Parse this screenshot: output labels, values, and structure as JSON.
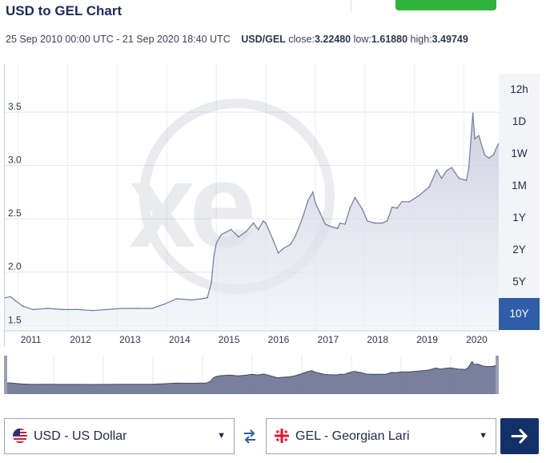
{
  "page_title": "USD to GEL Chart",
  "summary": {
    "date_range": "25 Sep 2010 00:00 UTC - 21 Sep 2020 18:40 UTC",
    "pair": "USD/GEL",
    "close_label": "close:",
    "close": "3.22480",
    "low_label": "low:",
    "low": "1.61880",
    "high_label": "high:",
    "high": "3.49749"
  },
  "range_buttons": [
    "12h",
    "1D",
    "1W",
    "1M",
    "1Y",
    "2Y",
    "5Y",
    "10Y"
  ],
  "active_range": "10Y",
  "chart_data": {
    "type": "area",
    "title": "USD to GEL Chart",
    "x_tick_labels": [
      "2011",
      "2012",
      "2013",
      "2014",
      "2015",
      "2016",
      "2017",
      "2018",
      "2019",
      "2020"
    ],
    "y_tick_labels": [
      "1.5",
      "2.0",
      "2.5",
      "3.0",
      "3.5"
    ],
    "ylim": [
      1.45,
      3.95
    ],
    "xlim": [
      2010.73,
      2020.72
    ],
    "grid": true,
    "series": [
      {
        "name": "USD/GEL",
        "x": [
          2010.73,
          2010.85,
          2010.95,
          2011.1,
          2011.3,
          2011.6,
          2011.9,
          2012.2,
          2012.5,
          2012.8,
          2013.1,
          2013.4,
          2013.7,
          2013.95,
          2014.2,
          2014.5,
          2014.7,
          2014.82,
          2014.9,
          2014.95,
          2015.0,
          2015.1,
          2015.3,
          2015.45,
          2015.6,
          2015.75,
          2015.85,
          2015.95,
          2016.0,
          2016.15,
          2016.25,
          2016.35,
          2016.5,
          2016.6,
          2016.75,
          2016.85,
          2016.95,
          2017.0,
          2017.1,
          2017.2,
          2017.3,
          2017.45,
          2017.5,
          2017.6,
          2017.7,
          2017.8,
          2017.95,
          2018.05,
          2018.2,
          2018.35,
          2018.45,
          2018.55,
          2018.65,
          2018.75,
          2018.9,
          2019.1,
          2019.3,
          2019.45,
          2019.55,
          2019.65,
          2019.75,
          2019.9,
          2020.05,
          2020.1,
          2020.18,
          2020.22,
          2020.3,
          2020.42,
          2020.5,
          2020.6,
          2020.65,
          2020.72
        ],
        "values": [
          1.76,
          1.77,
          1.73,
          1.68,
          1.65,
          1.66,
          1.65,
          1.65,
          1.64,
          1.65,
          1.66,
          1.66,
          1.66,
          1.7,
          1.75,
          1.74,
          1.75,
          1.76,
          1.9,
          2.15,
          2.27,
          2.35,
          2.4,
          2.33,
          2.38,
          2.46,
          2.4,
          2.48,
          2.46,
          2.3,
          2.18,
          2.22,
          2.26,
          2.34,
          2.52,
          2.67,
          2.75,
          2.65,
          2.55,
          2.45,
          2.43,
          2.41,
          2.46,
          2.45,
          2.6,
          2.7,
          2.59,
          2.48,
          2.46,
          2.46,
          2.48,
          2.61,
          2.6,
          2.66,
          2.66,
          2.72,
          2.8,
          2.96,
          2.88,
          2.95,
          2.98,
          2.88,
          2.86,
          2.98,
          3.49,
          3.25,
          3.28,
          3.1,
          3.07,
          3.1,
          3.16,
          3.22
        ]
      }
    ]
  },
  "watermark": "xe",
  "colors": {
    "accent_blue": "#2e5ea8",
    "dark_navy": "#14306b",
    "line": "#6f7a9b",
    "navigator_fill": "#6a7290",
    "green": "#2fb33a"
  },
  "converter": {
    "from_label": "USD - US Dollar",
    "from_flag": "us-flag-icon",
    "to_label": "GEL - Georgian Lari",
    "to_flag": "georgia-flag-icon",
    "swap_icon": "swap-arrows-icon",
    "go_icon": "arrow-right-icon"
  }
}
